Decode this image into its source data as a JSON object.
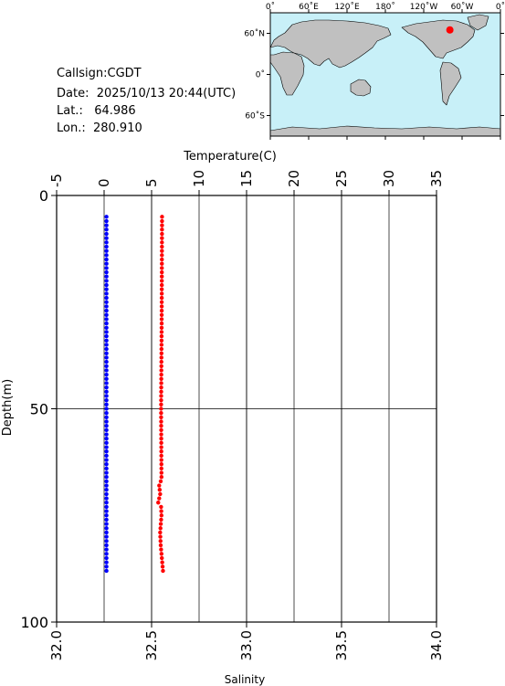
{
  "info": {
    "callsign": "Callsign:CGDT",
    "date": "Date:  2025/10/13 20:44(UTC)",
    "lat": "Lat.:   64.986",
    "lon": "Lon.:  280.910"
  },
  "map": {
    "lon_ticks": [
      "0˚",
      "60˚E",
      "120˚E",
      "180˚",
      "120˚W",
      "60˚W",
      "0˚"
    ],
    "lat_ticks": [
      "60˚N",
      "0˚",
      "60˚S"
    ],
    "station": {
      "lon": 280.91,
      "lat": 64.986
    },
    "ocean_color": "#c8f0f8",
    "land_color": "#c0c0c0",
    "marker_color": "#ff0000"
  },
  "chart_data": {
    "type": "scatter",
    "ylabel": "Depth(m)",
    "top_xlabel": "Temperature(C)",
    "bottom_xlabel": "Salinity",
    "ylim": [
      0,
      100
    ],
    "y_ticks": [
      "0",
      "50",
      "100"
    ],
    "temperature_axis": {
      "range": [
        -5,
        35
      ],
      "ticks": [
        "-5",
        "0",
        "5",
        "10",
        "15",
        "20",
        "25",
        "30",
        "35"
      ]
    },
    "salinity_axis": {
      "range": [
        32.0,
        34.0
      ],
      "ticks": [
        "32.0",
        "32.5",
        "33.0",
        "33.5",
        "34.0"
      ]
    },
    "grid": true,
    "series": [
      {
        "axis": "temperature",
        "color": "#0000ff",
        "depth_range": [
          5,
          88
        ],
        "value_profile": [
          [
            5,
            0.25
          ],
          [
            88,
            0.25
          ]
        ]
      },
      {
        "axis": "salinity",
        "color": "#ff0000",
        "depth_range": [
          5,
          88
        ],
        "value_profile": [
          [
            5,
            32.555
          ],
          [
            30,
            32.553
          ],
          [
            50,
            32.55
          ],
          [
            66,
            32.552
          ],
          [
            67,
            32.548
          ],
          [
            68,
            32.54
          ],
          [
            70,
            32.545
          ],
          [
            72,
            32.535
          ],
          [
            73,
            32.55
          ],
          [
            75,
            32.552
          ],
          [
            79,
            32.545
          ],
          [
            82,
            32.548
          ],
          [
            88,
            32.56
          ]
        ]
      }
    ]
  }
}
